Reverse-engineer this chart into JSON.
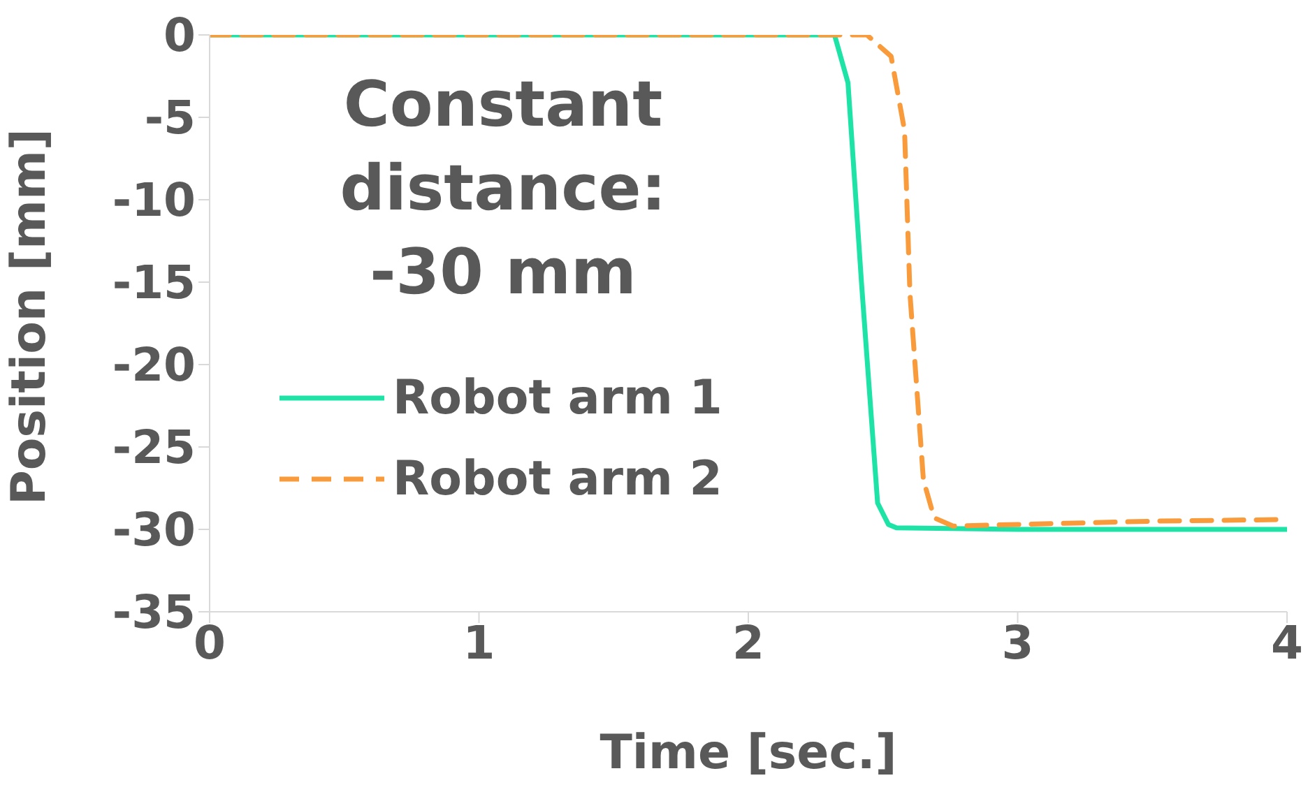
{
  "chart_data": {
    "type": "line",
    "xlabel": "Time [sec.]",
    "ylabel": "Position [mm]",
    "annotations": [
      "Constant distance: -30 mm"
    ],
    "xlim": [
      0,
      4
    ],
    "xticks": [
      0,
      1,
      2,
      3,
      4
    ],
    "ylim": [
      -35,
      0
    ],
    "yticks": [
      0,
      -5,
      -10,
      -15,
      -20,
      -25,
      -30,
      -35
    ],
    "grid": false,
    "legend": "left",
    "marker": "none",
    "series": [
      {
        "name": "Robot arm 1",
        "color": "#1de3a6",
        "line_style": "solid",
        "x": [
          0,
          1,
          2,
          2.32,
          2.37,
          2.42,
          2.48,
          2.52,
          2.55,
          3,
          3.5,
          4
        ],
        "values": [
          0,
          0,
          0,
          0,
          -2.9,
          -15,
          -28.4,
          -29.7,
          -29.9,
          -30,
          -30,
          -30
        ]
      },
      {
        "name": "Robot arm 2",
        "color": "#f99a3b",
        "line_style": "dashed",
        "x": [
          0,
          1,
          2,
          2.44,
          2.53,
          2.58,
          2.6,
          2.65,
          2.69,
          2.76,
          3,
          3.5,
          4
        ],
        "values": [
          0,
          0,
          0,
          0,
          -1.3,
          -5.8,
          -15.7,
          -27,
          -29.3,
          -29.8,
          -29.7,
          -29.5,
          -29.4
        ]
      }
    ]
  }
}
